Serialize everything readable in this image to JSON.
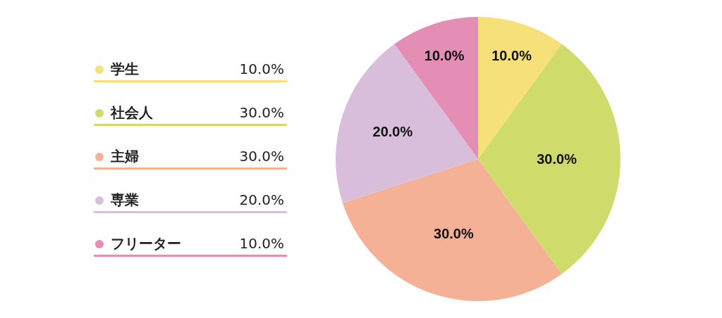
{
  "chart_data": {
    "type": "pie",
    "categories": [
      "学生",
      "社会人",
      "主婦",
      "専業",
      "フリーター"
    ],
    "values": [
      10,
      30,
      30,
      20,
      10
    ],
    "colors": [
      "#f5e07a",
      "#cfdb6a",
      "#f4b196",
      "#d9bedb",
      "#e48db5"
    ],
    "value_labels": [
      "10.0%",
      "30.0%",
      "30.0%",
      "20.0%",
      "10.0%"
    ],
    "legend": "left"
  }
}
